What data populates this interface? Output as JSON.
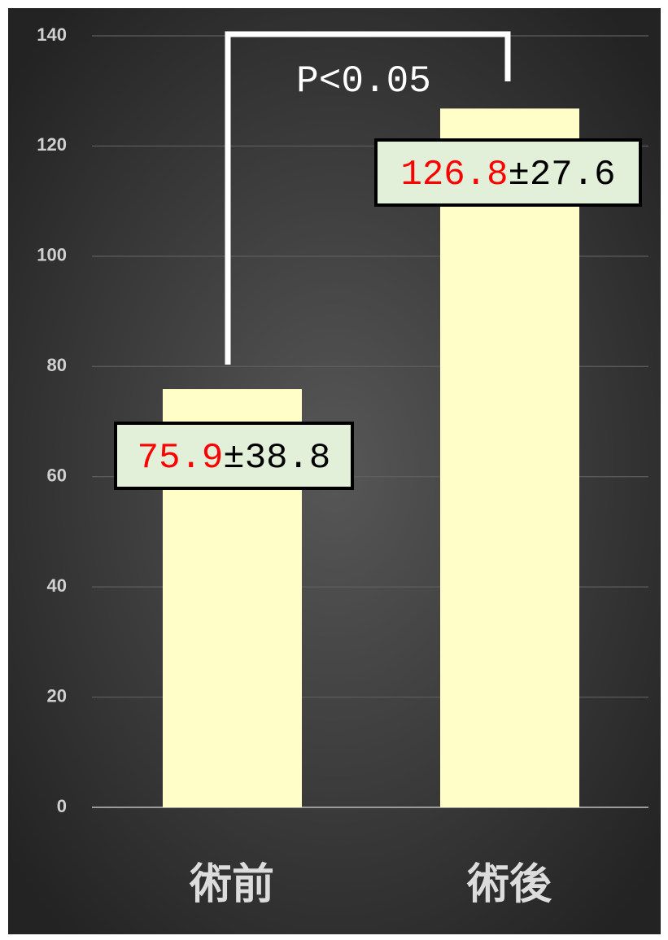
{
  "chart_data": {
    "type": "bar",
    "categories": [
      "術前",
      "術後"
    ],
    "values": [
      75.9,
      126.8
    ],
    "errors": [
      38.8,
      27.6
    ],
    "error_labels": [
      "±38.8",
      "±27.6"
    ],
    "color": "#fffdc8",
    "value_color": "#ff0000",
    "ylim": [
      0,
      140
    ],
    "yticks": [
      0,
      20,
      40,
      60,
      80,
      100,
      120,
      140
    ],
    "grid": true,
    "annotation": "P<0.05"
  }
}
